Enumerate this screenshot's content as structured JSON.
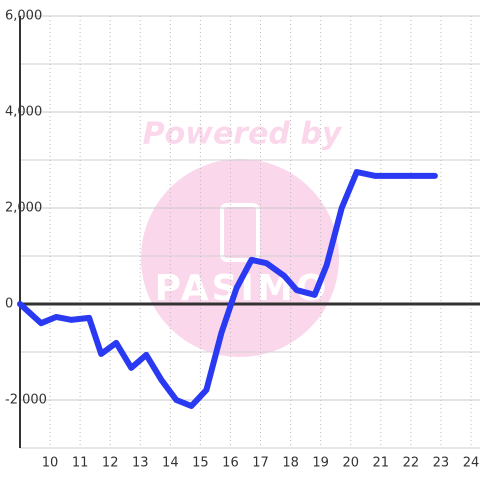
{
  "chart_data": {
    "type": "line",
    "x": [
      9.0,
      9.7,
      10.2,
      10.7,
      11.3,
      11.7,
      12.2,
      12.7,
      13.2,
      13.7,
      14.2,
      14.7,
      15.2,
      15.7,
      16.2,
      16.7,
      17.2,
      17.8,
      18.2,
      18.8,
      19.2,
      19.7,
      20.2,
      20.8,
      22.8
    ],
    "series": [
      {
        "color": "#2a3af2",
        "values": [
          0,
          -400,
          -270,
          -330,
          -290,
          -1040,
          -810,
          -1330,
          -1060,
          -1580,
          -2000,
          -2125,
          -1790,
          -600,
          330,
          920,
          850,
          580,
          290,
          190,
          810,
          2000,
          2750,
          2670,
          2670
        ]
      }
    ],
    "xlim": [
      9,
      24.3
    ],
    "xticks": [
      10,
      11,
      12,
      13,
      14,
      15,
      16,
      17,
      18,
      19,
      20,
      21,
      22,
      23,
      24
    ],
    "ylim": [
      -3000,
      6000
    ],
    "yticks": [
      {
        "value": -2000,
        "label": "-2,000"
      },
      0,
      {
        "value": 2000,
        "label": "2,000"
      },
      {
        "value": 4000,
        "label": "4,000"
      },
      {
        "value": 6000,
        "label": "6,000"
      }
    ],
    "y_minor_ticks": [
      -3000,
      -1000,
      1000,
      3000,
      5000
    ],
    "grid": true,
    "watermark": "Powered by",
    "watermark_logo": "PASIMO"
  }
}
